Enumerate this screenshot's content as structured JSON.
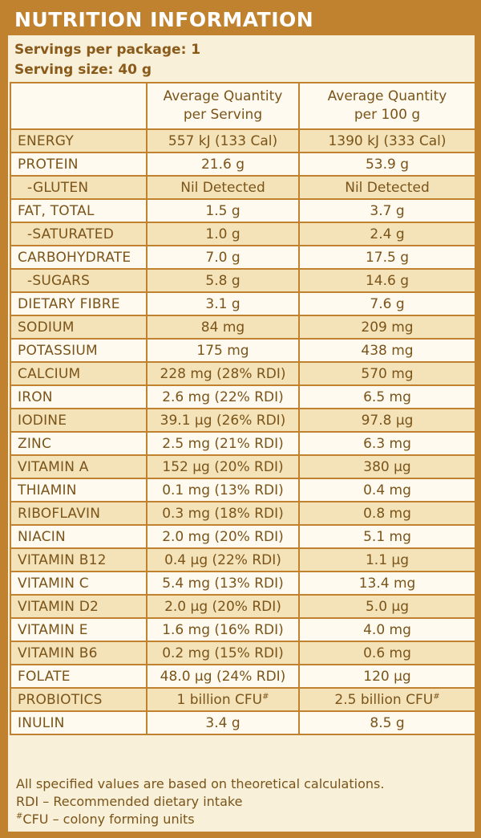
{
  "title": "NUTRITION INFORMATION",
  "servings_per_package": "Servings per package: 1",
  "serving_size": "Serving size: 40 g",
  "headers": {
    "col2_line1": "Average Quantity",
    "col2_line2": "per Serving",
    "col3_line1": "Average Quantity",
    "col3_line2": "per 100 g"
  },
  "rows": [
    {
      "name": "ENERGY",
      "per_serving": "557 kJ (133 Cal)",
      "per_100g": "1390 kJ (333 Cal)"
    },
    {
      "name": "PROTEIN",
      "per_serving": "21.6 g",
      "per_100g": "53.9 g"
    },
    {
      "name": "-GLUTEN",
      "per_serving": "Nil Detected",
      "per_100g": "Nil Detected"
    },
    {
      "name": "FAT, TOTAL",
      "per_serving": "1.5 g",
      "per_100g": "3.7 g"
    },
    {
      "name": "-SATURATED",
      "per_serving": "1.0 g",
      "per_100g": "2.4 g"
    },
    {
      "name": "CARBOHYDRATE",
      "per_serving": "7.0 g",
      "per_100g": "17.5 g"
    },
    {
      "name": "-SUGARS",
      "per_serving": "5.8 g",
      "per_100g": "14.6 g"
    },
    {
      "name": "DIETARY FIBRE",
      "per_serving": "3.1 g",
      "per_100g": "7.6 g"
    },
    {
      "name": "SODIUM",
      "per_serving": "84 mg",
      "per_100g": "209 mg"
    },
    {
      "name": "POTASSIUM",
      "per_serving": "175 mg",
      "per_100g": "438 mg"
    },
    {
      "name": "CALCIUM",
      "per_serving": "228 mg (28% RDI)",
      "per_100g": "570 mg"
    },
    {
      "name": "IRON",
      "per_serving": "2.6 mg (22% RDI)",
      "per_100g": "6.5 mg"
    },
    {
      "name": "IODINE",
      "per_serving": "39.1 µg (26% RDI)",
      "per_100g": "97.8 µg"
    },
    {
      "name": "ZINC",
      "per_serving": "2.5 mg (21% RDI)",
      "per_100g": "6.3 mg"
    },
    {
      "name": "VITAMIN A",
      "per_serving": "152 µg (20% RDI)",
      "per_100g": "380 µg"
    },
    {
      "name": "THIAMIN",
      "per_serving": "0.1 mg (13% RDI)",
      "per_100g": "0.4 mg"
    },
    {
      "name": "RIBOFLAVIN",
      "per_serving": "0.3 mg (18% RDI)",
      "per_100g": "0.8 mg"
    },
    {
      "name": "NIACIN",
      "per_serving": "2.0 mg (20% RDI)",
      "per_100g": "5.1 mg"
    },
    {
      "name": "VITAMIN B12",
      "per_serving": "0.4 µg (22% RDI)",
      "per_100g": "1.1 µg"
    },
    {
      "name": "VITAMIN C",
      "per_serving": "5.4 mg (13% RDI)",
      "per_100g": "13.4 mg"
    },
    {
      "name": "VITAMIN D2",
      "per_serving": "2.0 µg (20% RDI)",
      "per_100g": "5.0 µg"
    },
    {
      "name": "VITAMIN E",
      "per_serving": "1.6 mg (16% RDI)",
      "per_100g": "4.0 mg"
    },
    {
      "name": "VITAMIN B6",
      "per_serving": "0.2 mg (15% RDI)",
      "per_100g": "0.6 mg"
    },
    {
      "name": "FOLATE",
      "per_serving": "48.0 µg (24% RDI)",
      "per_100g": "120 µg"
    },
    {
      "name": "PROBIOTICS",
      "per_serving": "1 billion CFU",
      "per_serving_sup": "#",
      "per_100g": "2.5 billion CFU",
      "per_100g_sup": "#"
    },
    {
      "name": "INULIN",
      "per_serving": "3.4 g",
      "per_100g": "8.5 g"
    }
  ],
  "footnotes": {
    "line1": "All specified values are based on theoretical calculations.",
    "line2": "RDI – Recommended dietary intake",
    "line3_sup": "#",
    "line3": "CFU – colony forming units"
  },
  "colors": {
    "border": "#c0822e",
    "shaded_row": "#f4e2b8",
    "light_row": "#fffaf0",
    "text": "#7a5419"
  }
}
